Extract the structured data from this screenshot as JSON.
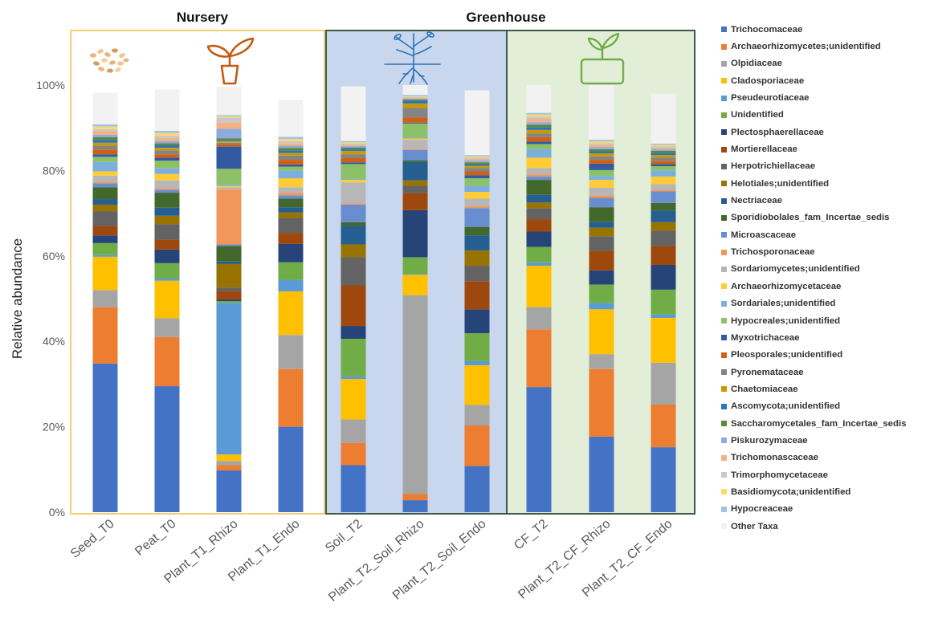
{
  "chart_data": {
    "type": "bar",
    "stacked": true,
    "ylabel": "Relative abundance",
    "ylim": [
      0,
      100
    ],
    "y_ticks": [
      "0%",
      "20%",
      "40%",
      "60%",
      "80%",
      "100%"
    ],
    "groups": [
      {
        "name": "Nursery",
        "categories": [
          "Seed_T0",
          "Peat_T0",
          "Plant_T1_Rhizo",
          "Plant_T1_Endo"
        ],
        "background": "#ffffff",
        "border": "#f2d06b"
      },
      {
        "name": "Greenhouse",
        "categories": [
          "Soil_T2",
          "Plant_T2_Soil_Rhizo",
          "Plant_T2_Soil_Endo",
          "CF_T2",
          "Plant_T2_CF_Rhizo",
          "Plant_T2_CF_Endo"
        ],
        "background": "#c8d6ee",
        "border": "#3d5a49"
      }
    ],
    "categories": [
      "Seed_T0",
      "Peat_T0",
      "Plant_T1_Rhizo",
      "Plant_T1_Endo",
      "Soil_T2",
      "Plant_T2_Soil_Rhizo",
      "Plant_T2_Soil_Endo",
      "CF_T2",
      "Plant_T2_CF_Rhizo",
      "Plant_T2_CF_Endo"
    ],
    "legend_position": "right",
    "series": [
      {
        "name": "Trichocomaceae",
        "color": "#4472c4",
        "values": [
          34.8,
          29.5,
          9.8,
          20.0,
          11.0,
          2.8,
          10.8,
          29.3,
          17.7,
          15.2
        ]
      },
      {
        "name": "Archaeorhizomycetes;unidentified",
        "color": "#ed7d31",
        "values": [
          13.2,
          11.5,
          1.2,
          13.5,
          5.2,
          1.5,
          9.5,
          13.5,
          15.8,
          10.0
        ]
      },
      {
        "name": "Olpidiaceae",
        "color": "#a5a5a5",
        "values": [
          4.0,
          4.4,
          1.0,
          8.0,
          5.5,
          46.5,
          4.8,
          5.2,
          3.5,
          9.8
        ]
      },
      {
        "name": "Cladosporiaceae",
        "color": "#ffc000",
        "values": [
          7.8,
          8.8,
          1.5,
          10.2,
          9.5,
          4.8,
          9.3,
          9.7,
          10.5,
          10.5
        ]
      },
      {
        "name": "Pseudeurotiaceae",
        "color": "#5b9bd5",
        "values": [
          0.4,
          0.5,
          35.5,
          2.7,
          0.6,
          0.2,
          1.0,
          0.8,
          1.5,
          0.8
        ]
      },
      {
        "name": "Unidentified",
        "color": "#70ad47",
        "values": [
          2.8,
          3.6,
          0.4,
          4.1,
          8.8,
          3.9,
          6.5,
          3.6,
          4.3,
          5.8
        ]
      },
      {
        "name": "Plectosphaerellaceae",
        "color": "#264478",
        "values": [
          1.8,
          3.2,
          0.4,
          4.3,
          3.0,
          11.0,
          5.6,
          3.6,
          3.3,
          5.8
        ]
      },
      {
        "name": "Mortierellaceae",
        "color": "#9e480e",
        "values": [
          2.2,
          2.3,
          2.0,
          2.6,
          9.5,
          4.0,
          6.6,
          2.9,
          4.6,
          4.4
        ]
      },
      {
        "name": "Herpotrichiellaceae",
        "color": "#636363",
        "values": [
          3.4,
          3.6,
          0.8,
          3.5,
          6.6,
          1.7,
          3.6,
          2.6,
          3.4,
          3.6
        ]
      },
      {
        "name": "Helotiales;unidentified",
        "color": "#997300",
        "values": [
          1.6,
          2.0,
          5.5,
          1.3,
          3.0,
          1.3,
          3.6,
          1.3,
          2.0,
          2.0
        ]
      },
      {
        "name": "Nectriaceae",
        "color": "#255e91",
        "values": [
          1.3,
          1.9,
          0.6,
          1.2,
          4.3,
          4.3,
          3.5,
          1.8,
          1.4,
          2.7
        ]
      },
      {
        "name": "Sporidiobolales_fam_Incertae_sedis",
        "color": "#43682b",
        "values": [
          2.8,
          3.5,
          3.6,
          2.0,
          0.9,
          0.4,
          2.0,
          3.5,
          3.4,
          1.8
        ]
      },
      {
        "name": "Microascaceae",
        "color": "#698ed0",
        "values": [
          0.9,
          0.7,
          0.4,
          0.8,
          4.1,
          2.4,
          4.4,
          0.8,
          2.2,
          2.7
        ]
      },
      {
        "name": "Trichosporonaceae",
        "color": "#f1975a",
        "values": [
          0.4,
          0.4,
          12.9,
          0.6,
          0.3,
          0.2,
          0.4,
          0.5,
          0.6,
          0.4
        ]
      },
      {
        "name": "Sordariomycetes;unidentified",
        "color": "#b7b7b7",
        "values": [
          1.4,
          1.8,
          0.5,
          1.3,
          4.9,
          2.2,
          1.8,
          1.5,
          1.8,
          1.3
        ]
      },
      {
        "name": "Archaeorhizomycetaceae",
        "color": "#ffcd33",
        "values": [
          1.0,
          1.5,
          0.3,
          2.1,
          0.6,
          0.3,
          1.6,
          2.4,
          1.8,
          1.8
        ]
      },
      {
        "name": "Sordariales;unidentified",
        "color": "#7cafdd",
        "values": [
          2.2,
          1.3,
          0.3,
          1.8,
          0.2,
          0.2,
          1.4,
          2.0,
          0.9,
          1.4
        ]
      },
      {
        "name": "Hypocreales;unidentified",
        "color": "#8cc168",
        "values": [
          1.2,
          1.8,
          3.7,
          0.9,
          3.5,
          3.3,
          1.8,
          1.2,
          1.4,
          1.0
        ]
      },
      {
        "name": "Myxotrichaceae",
        "color": "#335aa1",
        "values": [
          0.6,
          0.7,
          5.2,
          0.5,
          0.4,
          0.2,
          0.7,
          0.6,
          1.5,
          0.5
        ]
      },
      {
        "name": "Pleosporales;unidentified",
        "color": "#d26012",
        "values": [
          1.1,
          0.8,
          0.5,
          1.1,
          1.0,
          1.2,
          0.9,
          1.0,
          0.9,
          0.7
        ]
      },
      {
        "name": "Pyronemataceae",
        "color": "#848484",
        "values": [
          0.9,
          0.9,
          0.4,
          1.0,
          0.9,
          2.3,
          0.8,
          0.9,
          0.8,
          0.8
        ]
      },
      {
        "name": "Chaetomiaceae",
        "color": "#cc9a00",
        "values": [
          0.7,
          0.6,
          0.4,
          0.6,
          0.8,
          1.0,
          0.5,
          0.8,
          0.7,
          0.6
        ]
      },
      {
        "name": "Ascomycota;unidentified",
        "color": "#2e75b6",
        "values": [
          0.7,
          0.6,
          0.3,
          0.6,
          0.5,
          0.7,
          0.4,
          0.6,
          0.5,
          0.5
        ]
      },
      {
        "name": "Saccharomycetales_fam_Incertae_sedis",
        "color": "#5a8a39",
        "values": [
          0.6,
          0.5,
          0.3,
          0.6,
          0.3,
          0.2,
          0.4,
          0.6,
          0.5,
          0.5
        ]
      },
      {
        "name": "Piskurozymaceae",
        "color": "#8faadc",
        "values": [
          0.6,
          0.5,
          2.3,
          0.5,
          0.3,
          0.2,
          0.4,
          0.6,
          0.5,
          0.4
        ]
      },
      {
        "name": "Trichomonascaceae",
        "color": "#f4b183",
        "values": [
          0.8,
          0.7,
          1.4,
          0.6,
          0.3,
          0.2,
          0.4,
          0.8,
          0.5,
          0.4
        ]
      },
      {
        "name": "Trimorphomycetaceae",
        "color": "#c9c9c9",
        "values": [
          0.5,
          0.6,
          1.2,
          0.5,
          0.3,
          0.2,
          0.3,
          0.5,
          0.4,
          0.3
        ]
      },
      {
        "name": "Basidiomycota;unidentified",
        "color": "#ffd966",
        "values": [
          0.6,
          0.6,
          0.3,
          0.5,
          0.3,
          0.2,
          0.3,
          0.5,
          0.4,
          0.3
        ]
      },
      {
        "name": "Hypocreaceae",
        "color": "#9dc3e6",
        "values": [
          0.5,
          0.5,
          0.3,
          0.5,
          0.3,
          0.3,
          0.3,
          0.4,
          0.4,
          0.3
        ]
      },
      {
        "name": "Other Taxa",
        "color": "#f2f2f2",
        "values": [
          7.4,
          9.7,
          6.6,
          8.6,
          12.8,
          6.5,
          15.2,
          7.5,
          13.5,
          11.7
        ]
      }
    ]
  },
  "icon_colors": {
    "seed": "#e8b47c",
    "plant_nursery": "#c55a11",
    "roots": "#2e75b6",
    "plant_pot": "#70ad47"
  }
}
